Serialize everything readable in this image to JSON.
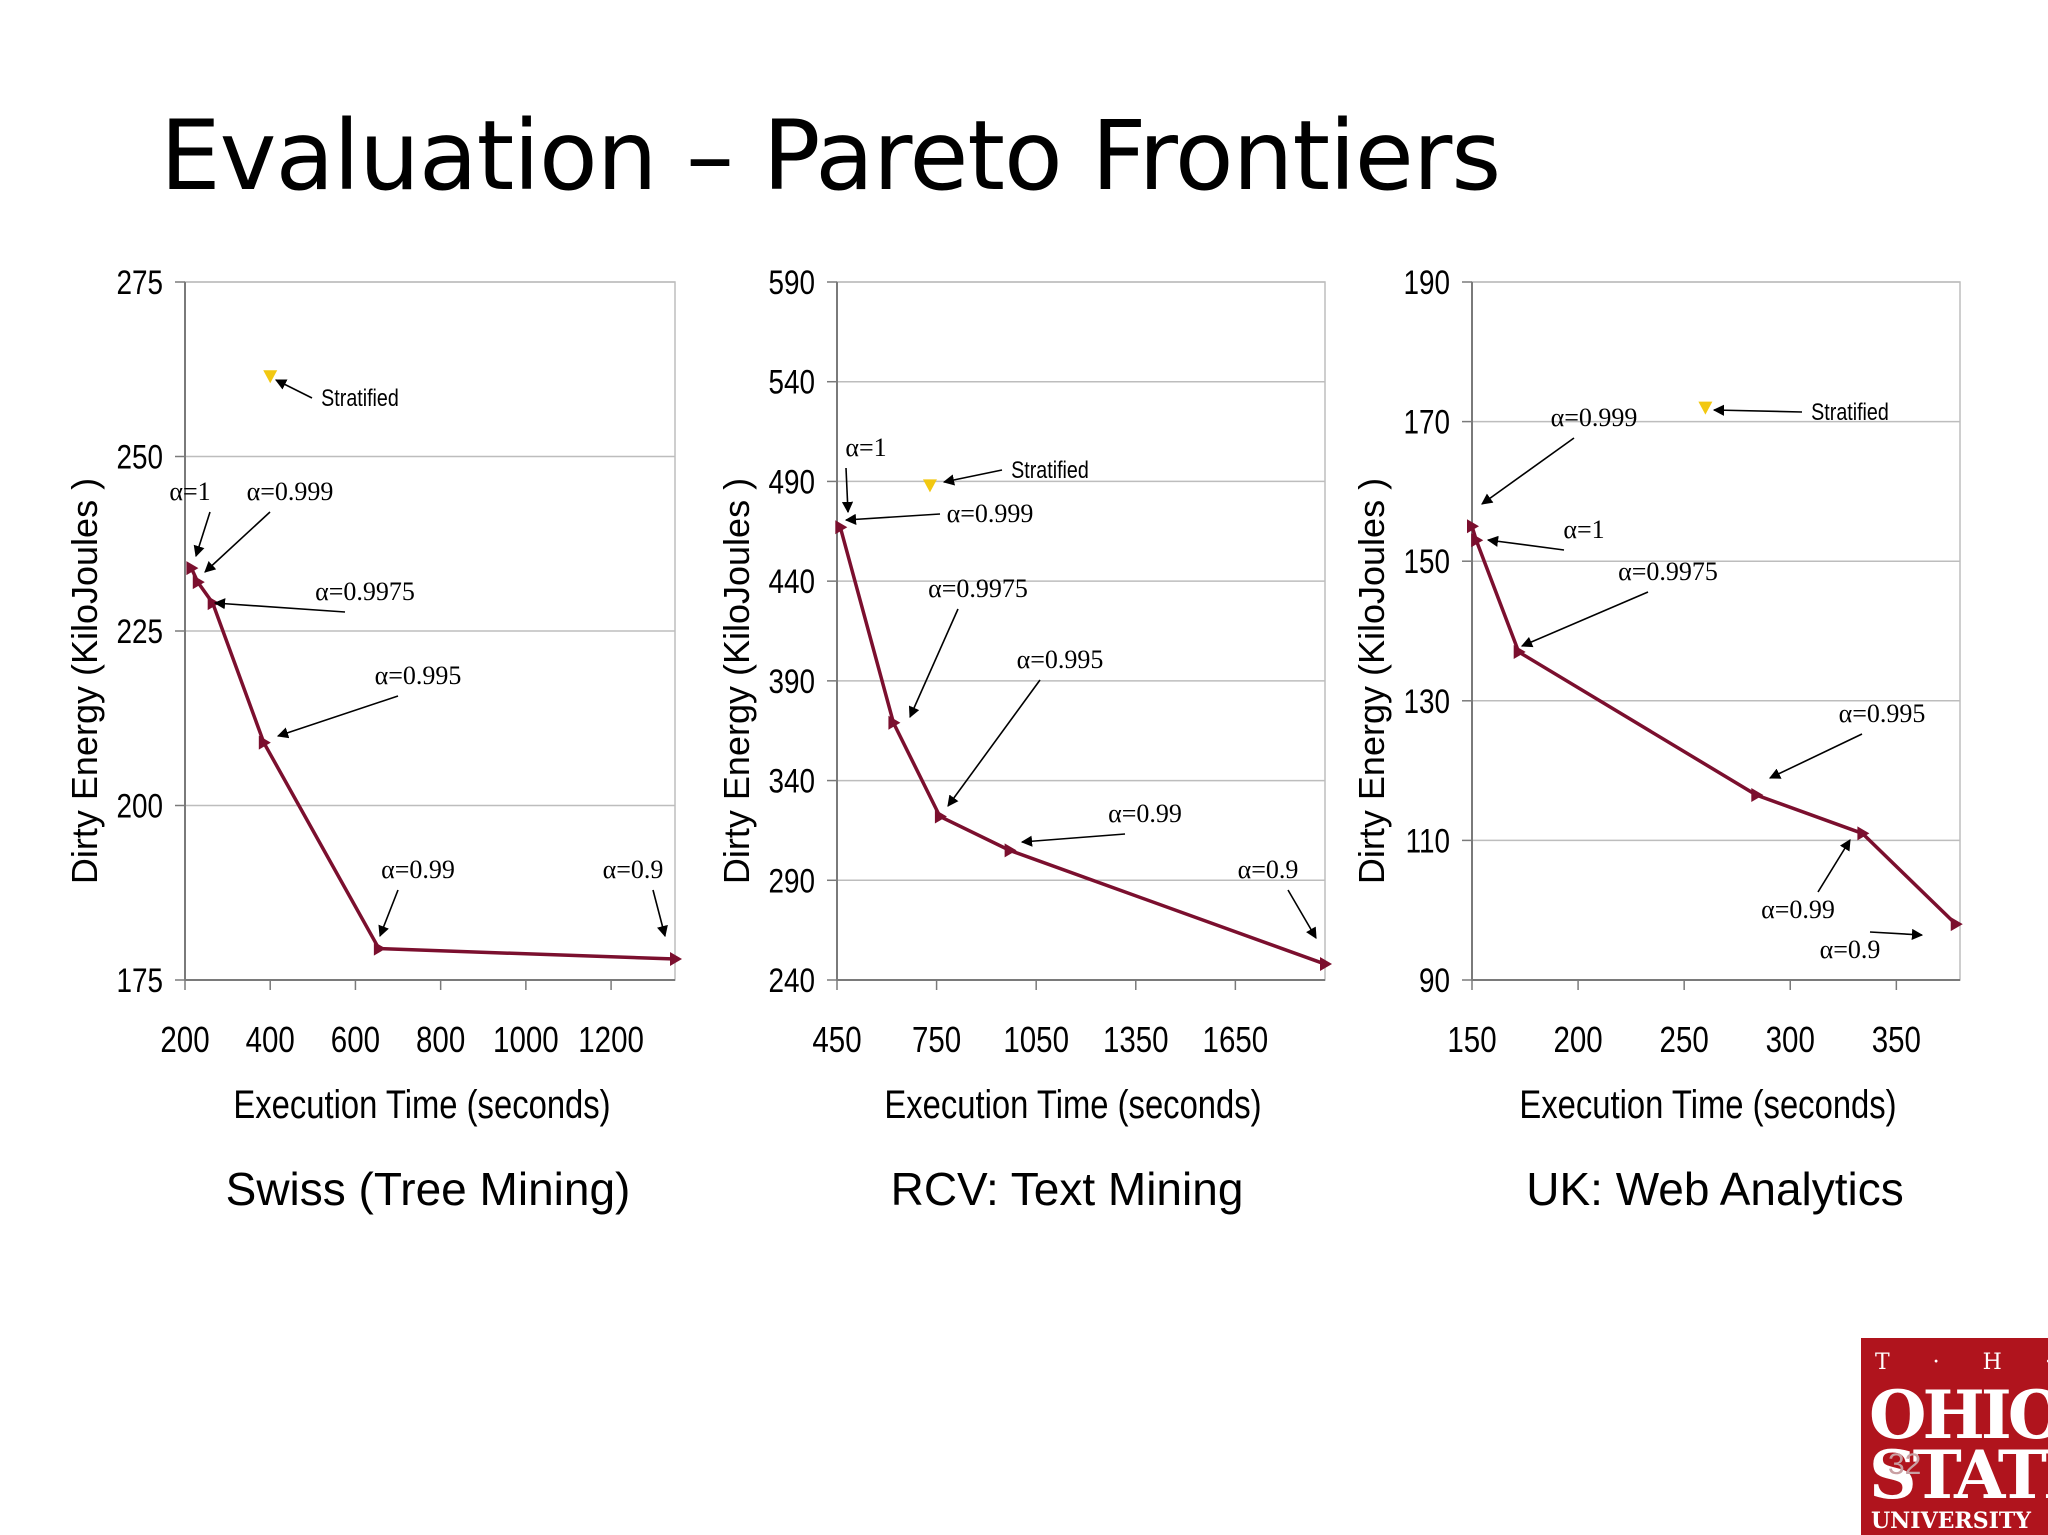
{
  "slide": {
    "title": "Evaluation – Pareto Frontiers",
    "page_number": "32"
  },
  "logo": {
    "line1": "T · H · E",
    "line2": "OHIO",
    "line3": "STATE",
    "line4": "UNIVERSITY"
  },
  "colors": {
    "series": "#7b0f2e",
    "stratified": "#f2c811",
    "grid": "#bdbdbd",
    "axis": "#7a7a7a"
  },
  "chart_data": [
    {
      "type": "line",
      "caption": "Swiss (Tree Mining)",
      "xlabel": "Execution Time (seconds)",
      "ylabel": "Dirty Energy (KiloJoules )",
      "xlim": [
        200,
        1350
      ],
      "ylim": [
        175,
        275
      ],
      "xticks": [
        200,
        400,
        600,
        800,
        1000,
        1200
      ],
      "yticks": [
        175,
        200,
        225,
        250,
        275
      ],
      "grid": true,
      "series": [
        {
          "x": [
            215,
            230,
            265,
            385,
            655,
            1350
          ],
          "y": [
            234,
            232,
            229,
            209,
            179.5,
            178
          ],
          "labels": [
            "α=1",
            "α=0.999",
            "α=0.9975",
            "α=0.995",
            "α=0.99",
            "α=0.9"
          ]
        }
      ],
      "stratified": {
        "label": "Stratified",
        "x": 400,
        "y": 261.5
      }
    },
    {
      "type": "line",
      "caption": "RCV: Text Mining",
      "xlabel": "Execution Time (seconds)",
      "ylabel": "Dirty Energy (KiloJoules )",
      "xlim": [
        450,
        1920
      ],
      "ylim": [
        240,
        590
      ],
      "xticks": [
        450,
        750,
        1050,
        1350,
        1650
      ],
      "yticks": [
        240,
        290,
        340,
        390,
        440,
        490,
        540,
        590
      ],
      "grid": true,
      "series": [
        {
          "x": [
            460,
            620,
            760,
            970,
            1920
          ],
          "y": [
            467,
            369,
            322,
            305,
            248
          ],
          "labels": [
            "α=1",
            "α=0.9975",
            "α=0.995",
            "α=0.99",
            "α=0.9"
          ]
        }
      ],
      "extra_labels": [
        "α=0.999"
      ],
      "stratified": {
        "label": "Stratified",
        "x": 730,
        "y": 488
      }
    },
    {
      "type": "line",
      "caption": "UK: Web Analytics",
      "xlabel": "Execution Time (seconds)",
      "ylabel": "Dirty Energy (KiloJoules )",
      "xlim": [
        150,
        380
      ],
      "ylim": [
        90,
        190
      ],
      "xticks": [
        150,
        200,
        250,
        300,
        350
      ],
      "yticks": [
        90,
        110,
        130,
        150,
        170,
        190
      ],
      "grid": true,
      "series": [
        {
          "x": [
            150,
            152,
            172,
            284,
            334,
            378
          ],
          "y": [
            155,
            153,
            137,
            116.5,
            111,
            98
          ],
          "labels": [
            "α=0.999",
            "α=1",
            "α=0.9975",
            "α=0.995",
            "α=0.99",
            "α=0.9"
          ]
        }
      ],
      "stratified": {
        "label": "Stratified",
        "x": 260,
        "y": 172
      }
    }
  ]
}
